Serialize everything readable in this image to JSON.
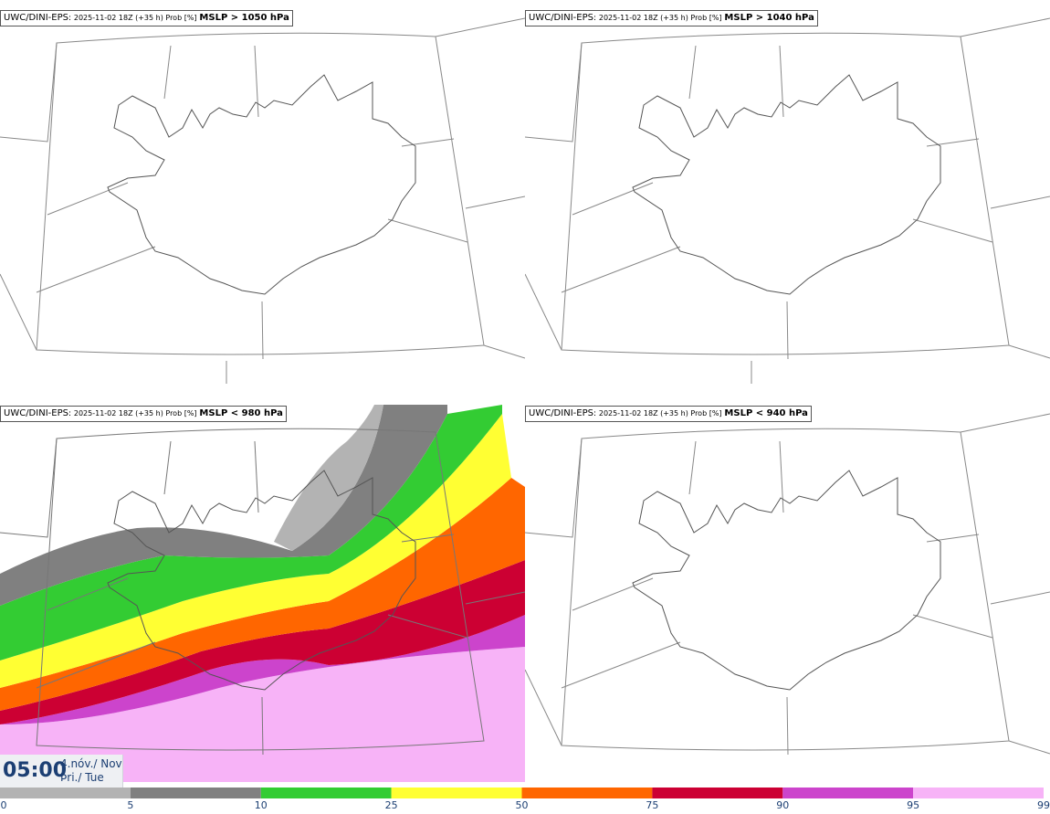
{
  "panels": [
    {
      "model": "UWC/DINI-EPS",
      "run": "2025-11-02 18Z (+35 h) Prob [%]",
      "threshold": "MSLP > 1050 hPa"
    },
    {
      "model": "UWC/DINI-EPS",
      "run": "2025-11-02 18Z (+35 h) Prob [%]",
      "threshold": "MSLP > 1040 hPa"
    },
    {
      "model": "UWC/DINI-EPS",
      "run": "2025-11-02 18Z (+35 h) Prob [%]",
      "threshold": "MSLP < 980 hPa"
    },
    {
      "model": "UWC/DINI-EPS",
      "run": "2025-11-02 18Z (+35 h) Prob [%]",
      "threshold": "MSLP < 940 hPa"
    }
  ],
  "time": {
    "hour": "05:00",
    "date_line1": "4.nóv./ Nov",
    "date_line2": "Þri./ Tue"
  },
  "colorbar": {
    "ticks": [
      "0",
      "5",
      "10",
      "25",
      "50",
      "75",
      "90",
      "95",
      "99"
    ],
    "colors": [
      "#ffffff",
      "#b3b3b3",
      "#808080",
      "#33cc33",
      "#ffff33",
      "#ff6600",
      "#cc0033",
      "#cc44cc",
      "#f7b3f7"
    ]
  }
}
